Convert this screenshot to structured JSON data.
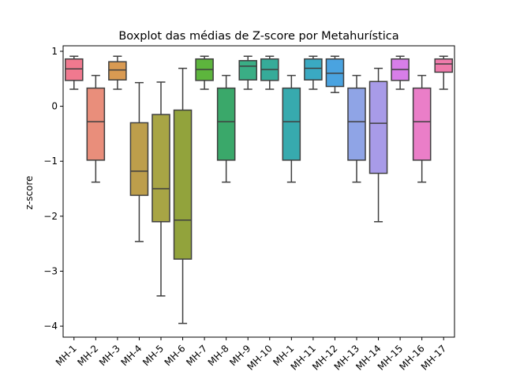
{
  "chart_data": {
    "type": "boxplot",
    "title": "Boxplot das médias de Z-score por Metahurística",
    "xlabel": "",
    "ylabel": "z-score",
    "ylim": [
      -4.2,
      1.1
    ],
    "yticks": [
      1,
      0,
      -1,
      -2,
      -3,
      -4
    ],
    "ytick_labels": [
      "1",
      "0",
      "−1",
      "−2",
      "−3",
      "−4"
    ],
    "grid": false,
    "series": [
      {
        "label": "MH-1",
        "color": "#f0798f",
        "whisker_low": 0.31,
        "q1": 0.47,
        "median": 0.68,
        "q3": 0.86,
        "whisker_high": 0.91
      },
      {
        "label": "MH-2",
        "color": "#e98e7b",
        "whisker_low": -1.38,
        "q1": -0.98,
        "median": -0.28,
        "q3": 0.33,
        "whisker_high": 0.56
      },
      {
        "label": "MH-3",
        "color": "#d99a52",
        "whisker_low": 0.31,
        "q1": 0.48,
        "median": 0.66,
        "q3": 0.81,
        "whisker_high": 0.91
      },
      {
        "label": "MH-4",
        "color": "#bd9e4b",
        "whisker_low": -2.46,
        "q1": -1.62,
        "median": -1.18,
        "q3": -0.3,
        "whisker_high": 0.43
      },
      {
        "label": "MH-5",
        "color": "#a8a545",
        "whisker_low": -3.45,
        "q1": -2.1,
        "median": -1.5,
        "q3": -0.15,
        "whisker_high": 0.44
      },
      {
        "label": "MH-6",
        "color": "#92a33c",
        "whisker_low": -3.95,
        "q1": -2.78,
        "median": -2.07,
        "q3": -0.07,
        "whisker_high": 0.69
      },
      {
        "label": "MH-7",
        "color": "#5db53d",
        "whisker_low": 0.31,
        "q1": 0.47,
        "median": 0.67,
        "q3": 0.86,
        "whisker_high": 0.91
      },
      {
        "label": "MH-8",
        "color": "#3aa86a",
        "whisker_low": -1.38,
        "q1": -0.98,
        "median": -0.28,
        "q3": 0.33,
        "whisker_high": 0.56
      },
      {
        "label": "MH-9",
        "color": "#3aae85",
        "whisker_low": 0.31,
        "q1": 0.48,
        "median": 0.73,
        "q3": 0.83,
        "whisker_high": 0.91
      },
      {
        "label": "MH-10",
        "color": "#36ab99",
        "whisker_low": 0.31,
        "q1": 0.47,
        "median": 0.67,
        "q3": 0.86,
        "whisker_high": 0.91
      },
      {
        "label": "MH-1",
        "color": "#37aaae",
        "whisker_low": -1.38,
        "q1": -0.98,
        "median": -0.28,
        "q3": 0.33,
        "whisker_high": 0.56
      },
      {
        "label": "MH-11",
        "color": "#3aa9c2",
        "whisker_low": 0.31,
        "q1": 0.48,
        "median": 0.69,
        "q3": 0.86,
        "whisker_high": 0.91
      },
      {
        "label": "MH-12",
        "color": "#4aa3e0",
        "whisker_low": 0.25,
        "q1": 0.36,
        "median": 0.6,
        "q3": 0.86,
        "whisker_high": 0.91
      },
      {
        "label": "MH-13",
        "color": "#8fa4e6",
        "whisker_low": -1.38,
        "q1": -0.98,
        "median": -0.28,
        "q3": 0.33,
        "whisker_high": 0.56
      },
      {
        "label": "MH-14",
        "color": "#a89be8",
        "whisker_low": -2.1,
        "q1": -1.22,
        "median": -0.31,
        "q3": 0.45,
        "whisker_high": 0.69
      },
      {
        "label": "MH-15",
        "color": "#d77ee8",
        "whisker_low": 0.31,
        "q1": 0.47,
        "median": 0.67,
        "q3": 0.86,
        "whisker_high": 0.91
      },
      {
        "label": "MH-16",
        "color": "#ea7ec8",
        "whisker_low": -1.38,
        "q1": -0.98,
        "median": -0.28,
        "q3": 0.33,
        "whisker_high": 0.56
      },
      {
        "label": "MH-17",
        "color": "#ef7bab",
        "whisker_low": 0.31,
        "q1": 0.62,
        "median": 0.77,
        "q3": 0.86,
        "whisker_high": 0.91
      }
    ]
  }
}
